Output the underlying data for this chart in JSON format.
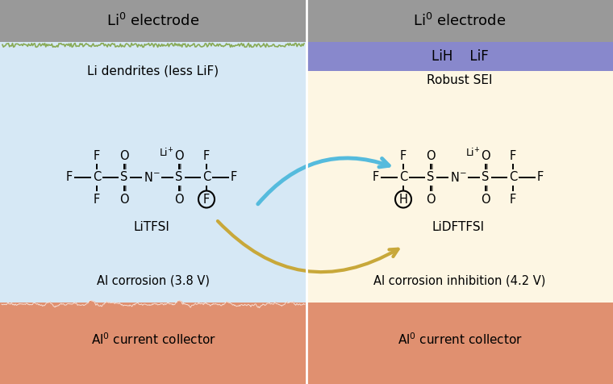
{
  "fig_width": 7.6,
  "fig_height": 4.76,
  "bg_color": "#ffffff",
  "left_bg": "#d6e8f5",
  "right_bg": "#fdf6e3",
  "gray_bar_color": "#999999",
  "purple_bar_color": "#8888cc",
  "salmon_color": "#e09070",
  "green_dendrite_color": "#88aa55",
  "left_title": "Li$^0$ electrode",
  "right_title": "Li$^0$ electrode",
  "sei_label": "LiH    LiF",
  "left_label1": "Li dendrites (less LiF)",
  "right_label1": "Robust SEI",
  "left_mol": "LiTFSI",
  "right_mol": "LiDFTFSI",
  "left_corrosion": "Al corrosion (3.8 V)",
  "right_corrosion": "Al corrosion inhibition (4.2 V)",
  "left_collector": "Al$^0$ current collector",
  "right_collector": "Al$^0$ current collector",
  "blue_arrow_color": "#55bbdd",
  "gold_arrow_color": "#c8a83a"
}
